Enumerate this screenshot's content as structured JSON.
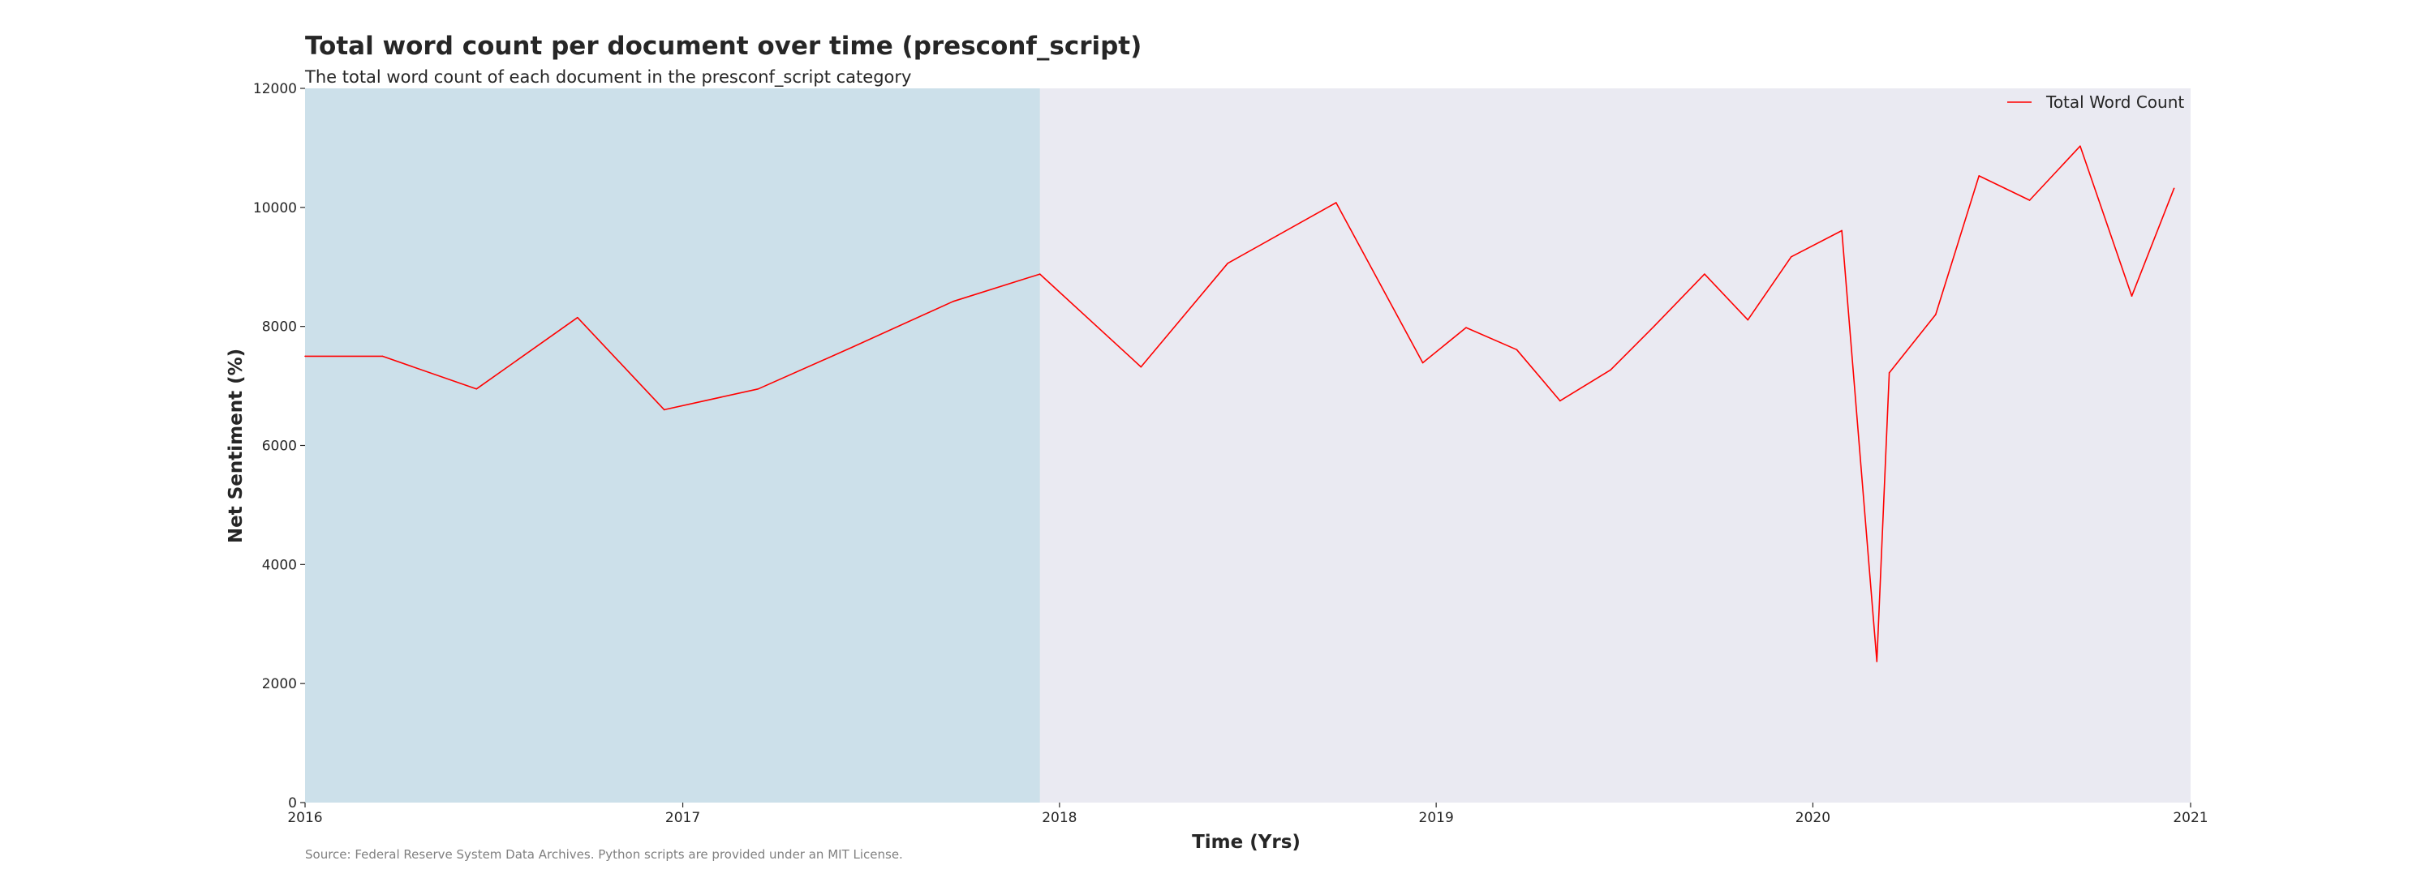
{
  "chart_data": {
    "type": "line",
    "title": "Total word count per document over time (presconf_script)",
    "subtitle": "The total word count of each document in the presconf_script category",
    "xlabel": "Time (Yrs)",
    "ylabel": "Net Sentiment (%)",
    "source": "Source: Federal Reserve System Data Archives. Python scripts are provided under an MIT License.",
    "xlim": [
      "2016-01-01",
      "2021-01-01"
    ],
    "ylim": [
      0,
      12000
    ],
    "x_ticks": [
      "2016",
      "2017",
      "2018",
      "2019",
      "2020",
      "2021"
    ],
    "y_ticks": [
      "0",
      "2000",
      "4000",
      "6000",
      "8000",
      "10000",
      "12000"
    ],
    "legend_position": "top-right",
    "grid": false,
    "colors": {
      "plot_background": "#eaeaf2",
      "highlight": "#cce0ea",
      "line": "#ff0000"
    },
    "highlight_range": [
      "2016-01-01",
      "2017-12-13"
    ],
    "series": [
      {
        "name": "Total Word Count",
        "color": "#ff0000",
        "points": [
          {
            "x": "2016-01-01",
            "y": 7500
          },
          {
            "x": "2016-03-16",
            "y": 7500
          },
          {
            "x": "2016-06-15",
            "y": 6950
          },
          {
            "x": "2016-09-21",
            "y": 8150
          },
          {
            "x": "2016-12-14",
            "y": 6600
          },
          {
            "x": "2017-03-15",
            "y": 6950
          },
          {
            "x": "2017-06-14",
            "y": 7650
          },
          {
            "x": "2017-09-20",
            "y": 8420
          },
          {
            "x": "2017-12-13",
            "y": 8880
          },
          {
            "x": "2018-03-21",
            "y": 7320
          },
          {
            "x": "2018-06-13",
            "y": 9060
          },
          {
            "x": "2018-09-26",
            "y": 10080
          },
          {
            "x": "2018-12-19",
            "y": 7390
          },
          {
            "x": "2019-01-30",
            "y": 7980
          },
          {
            "x": "2019-03-20",
            "y": 7610
          },
          {
            "x": "2019-05-01",
            "y": 6750
          },
          {
            "x": "2019-06-19",
            "y": 7270
          },
          {
            "x": "2019-07-31",
            "y": 8000
          },
          {
            "x": "2019-09-18",
            "y": 8880
          },
          {
            "x": "2019-10-30",
            "y": 8110
          },
          {
            "x": "2019-12-11",
            "y": 9170
          },
          {
            "x": "2020-01-29",
            "y": 9610
          },
          {
            "x": "2020-03-03",
            "y": 2370
          },
          {
            "x": "2020-03-15",
            "y": 7220
          },
          {
            "x": "2020-04-29",
            "y": 8200
          },
          {
            "x": "2020-06-10",
            "y": 10530
          },
          {
            "x": "2020-07-29",
            "y": 10120
          },
          {
            "x": "2020-09-16",
            "y": 11030
          },
          {
            "x": "2020-11-05",
            "y": 8510
          },
          {
            "x": "2020-12-16",
            "y": 10320
          }
        ]
      }
    ]
  }
}
